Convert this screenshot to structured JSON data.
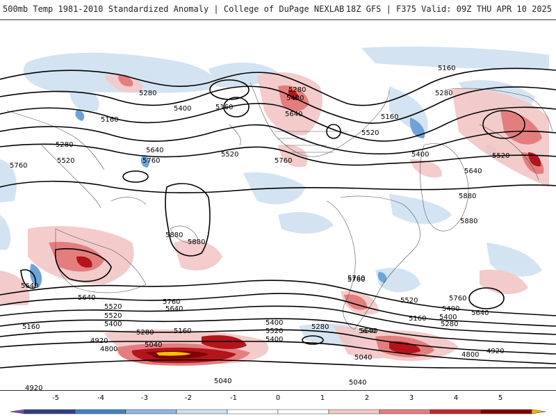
{
  "header": {
    "title_left": "500mb Temp 1981-2010 Standardized Anomaly | College of DuPage NEXLAB",
    "title_right": "18Z GFS | F375 Valid: 09Z THU APR 10 2025"
  },
  "colorbar": {
    "ticks": [
      "-5",
      "-4",
      "-3",
      "-2",
      "-1",
      "0",
      "1",
      "2",
      "3",
      "4",
      "5"
    ],
    "colors": [
      "#7b4fa8",
      "#2e3f86",
      "#3f7fc6",
      "#8fb8df",
      "#cfe1f1",
      "#ffffff",
      "#ffffff",
      "#f3c9c9",
      "#e47e7e",
      "#c1272d",
      "#7f0000",
      "#f4b400"
    ]
  },
  "contour_labels": [
    {
      "text": "5160",
      "id": "lbl-1"
    },
    {
      "text": "5280",
      "id": "lbl-2"
    },
    {
      "text": "5400",
      "id": "lbl-3"
    },
    {
      "text": "5160",
      "id": "lbl-4"
    },
    {
      "text": "5280",
      "id": "lbl-5"
    },
    {
      "text": "5520",
      "id": "lbl-6"
    },
    {
      "text": "5640",
      "id": "lbl-7"
    },
    {
      "text": "5760",
      "id": "lbl-8"
    },
    {
      "text": "5760",
      "id": "lbl-9"
    },
    {
      "text": "5520",
      "id": "lbl-10"
    },
    {
      "text": "5400",
      "id": "lbl-11"
    },
    {
      "text": "5280",
      "id": "lbl-12"
    },
    {
      "text": "5640",
      "id": "lbl-13"
    },
    {
      "text": "5760",
      "id": "lbl-14"
    },
    {
      "text": "5520",
      "id": "lbl-15"
    },
    {
      "text": "5160",
      "id": "lbl-16"
    },
    {
      "text": "5160",
      "id": "lbl-17"
    },
    {
      "text": "5280",
      "id": "lbl-18"
    },
    {
      "text": "5400",
      "id": "lbl-19"
    },
    {
      "text": "5640",
      "id": "lbl-20"
    },
    {
      "text": "5520",
      "id": "lbl-21"
    },
    {
      "text": "5880",
      "id": "lbl-22"
    },
    {
      "text": "5880",
      "id": "lbl-23"
    },
    {
      "text": "5880",
      "id": "lbl-24"
    },
    {
      "text": "5880",
      "id": "lbl-25"
    },
    {
      "text": "5640",
      "id": "lbl-26"
    },
    {
      "text": "5760",
      "id": "lbl-27"
    },
    {
      "text": "5640",
      "id": "lbl-28"
    },
    {
      "text": "5520",
      "id": "lbl-29"
    },
    {
      "text": "5400",
      "id": "lbl-30"
    },
    {
      "text": "5280",
      "id": "lbl-31"
    },
    {
      "text": "5160",
      "id": "lbl-32"
    },
    {
      "text": "5040",
      "id": "lbl-33"
    },
    {
      "text": "4920",
      "id": "lbl-34"
    },
    {
      "text": "4800",
      "id": "lbl-35"
    },
    {
      "text": "5040",
      "id": "lbl-36"
    },
    {
      "text": "4920",
      "id": "lbl-37"
    },
    {
      "text": "5520",
      "id": "lbl-38"
    },
    {
      "text": "5400",
      "id": "lbl-39"
    },
    {
      "text": "5160",
      "id": "lbl-40"
    },
    {
      "text": "5640",
      "id": "lbl-41"
    },
    {
      "text": "5040",
      "id": "lbl-42"
    },
    {
      "text": "5040",
      "id": "lbl-43"
    },
    {
      "text": "5760",
      "id": "lbl-44"
    },
    {
      "text": "5520",
      "id": "lbl-45"
    },
    {
      "text": "5160",
      "id": "lbl-46"
    },
    {
      "text": "5400",
      "id": "lbl-47"
    },
    {
      "text": "5280",
      "id": "lbl-48"
    },
    {
      "text": "5760",
      "id": "lbl-49"
    },
    {
      "text": "5640",
      "id": "lbl-50"
    },
    {
      "text": "4920",
      "id": "lbl-51"
    },
    {
      "text": "4800",
      "id": "lbl-52"
    },
    {
      "text": "5640",
      "id": "lbl-53"
    },
    {
      "text": "5280",
      "id": "lbl-54"
    },
    {
      "text": "5400",
      "id": "lbl-55"
    },
    {
      "text": "5640",
      "id": "lbl-56"
    },
    {
      "text": "5520",
      "id": "lbl-57"
    },
    {
      "text": "5760",
      "id": "lbl-58"
    },
    {
      "text": "5400",
      "id": "lbl-59"
    }
  ]
}
